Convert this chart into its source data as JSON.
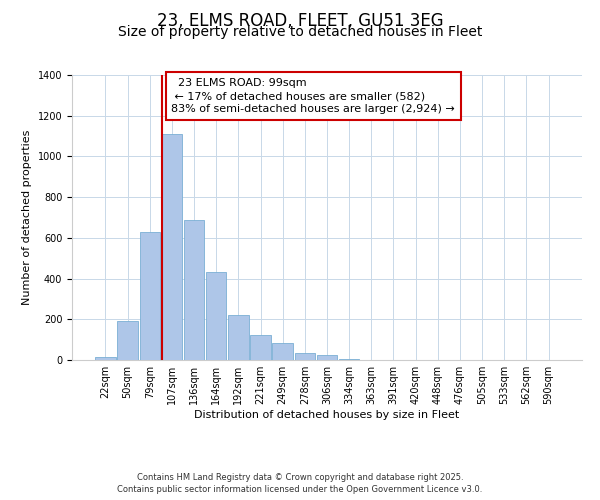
{
  "title": "23, ELMS ROAD, FLEET, GU51 3EG",
  "subtitle": "Size of property relative to detached houses in Fleet",
  "xlabel": "Distribution of detached houses by size in Fleet",
  "ylabel": "Number of detached properties",
  "footnote1": "Contains HM Land Registry data © Crown copyright and database right 2025.",
  "footnote2": "Contains public sector information licensed under the Open Government Licence v3.0.",
  "bar_labels": [
    "22sqm",
    "50sqm",
    "79sqm",
    "107sqm",
    "136sqm",
    "164sqm",
    "192sqm",
    "221sqm",
    "249sqm",
    "278sqm",
    "306sqm",
    "334sqm",
    "363sqm",
    "391sqm",
    "420sqm",
    "448sqm",
    "476sqm",
    "505sqm",
    "533sqm",
    "562sqm",
    "590sqm"
  ],
  "bar_values": [
    15,
    192,
    628,
    1112,
    686,
    430,
    222,
    122,
    82,
    35,
    27,
    5,
    2,
    0,
    0,
    0,
    0,
    0,
    0,
    0,
    0
  ],
  "bar_color": "#aec6e8",
  "bar_edgecolor": "#7aafd4",
  "ylim": [
    0,
    1400
  ],
  "yticks": [
    0,
    200,
    400,
    600,
    800,
    1000,
    1200,
    1400
  ],
  "vline_color": "#cc0000",
  "annotation_title": "23 ELMS ROAD: 99sqm",
  "annotation_line1": "← 17% of detached houses are smaller (582)",
  "annotation_line2": "83% of semi-detached houses are larger (2,924) →",
  "annotation_box_color": "#ffffff",
  "annotation_box_edgecolor": "#cc0000",
  "background_color": "#ffffff",
  "grid_color": "#c8d8e8",
  "title_fontsize": 12,
  "subtitle_fontsize": 10,
  "label_fontsize": 8,
  "tick_fontsize": 7,
  "annotation_fontsize": 8,
  "footnote_fontsize": 6
}
